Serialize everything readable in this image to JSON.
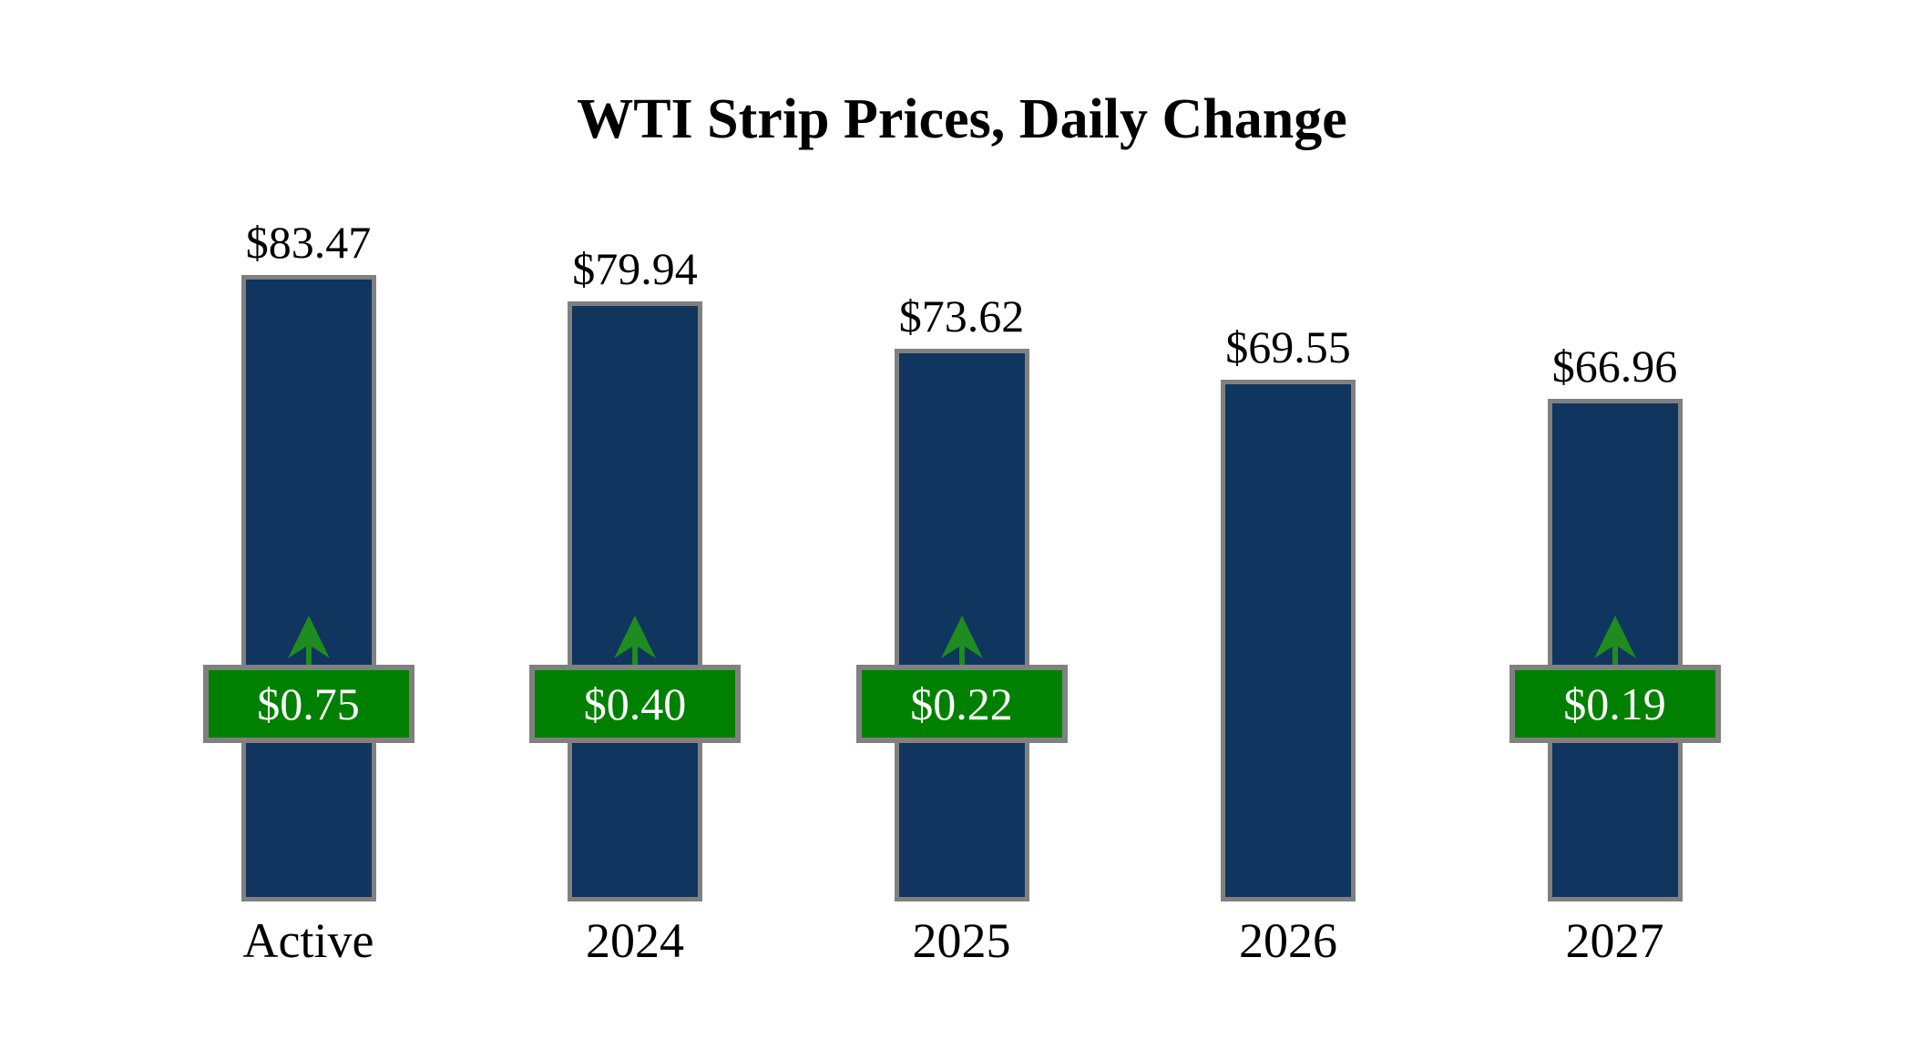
{
  "title": "WTI Strip Prices, Daily Change",
  "colors": {
    "bar": "#10355f",
    "bar_border": "#808080",
    "badge": "#008000",
    "badge_border": "#808080",
    "arrow": "#1e8c1e",
    "text": "#000000",
    "badge_text": "#ffffff",
    "bg": "#ffffff"
  },
  "chart_data": {
    "type": "bar",
    "title": "WTI Strip Prices, Daily Change",
    "categories": [
      "Active",
      "2024",
      "2025",
      "2026",
      "2027"
    ],
    "values": [
      83.47,
      79.94,
      73.62,
      69.55,
      66.96
    ],
    "value_labels": [
      "$83.47",
      "$79.94",
      "$73.62",
      "$69.55",
      "$66.96"
    ],
    "daily_changes": [
      0.75,
      0.4,
      0.22,
      null,
      0.19
    ],
    "change_labels": [
      "$0.75",
      "$0.40",
      "$0.22",
      null,
      "$0.19"
    ],
    "change_direction": "up",
    "xlabel": "",
    "ylabel": "",
    "ylim": [
      0,
      100
    ],
    "grid": false,
    "legend": null
  }
}
